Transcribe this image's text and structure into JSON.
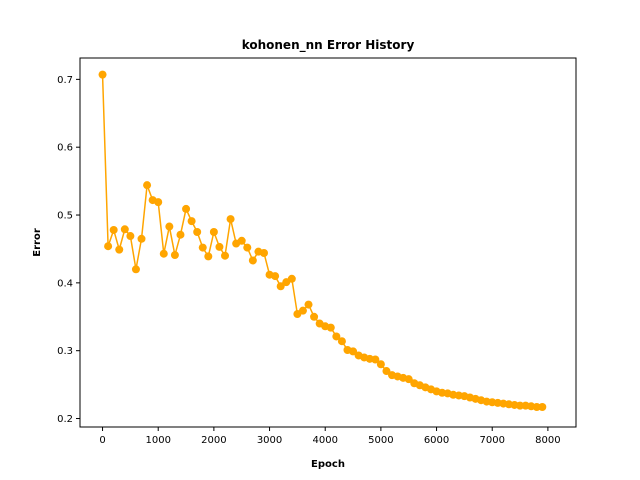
{
  "chart_data": {
    "type": "line",
    "title": "kohonen_nn Error History",
    "xlabel": "Epoch",
    "ylabel": "Error",
    "xlim": [
      -405,
      8505
    ],
    "ylim": [
      0.1875,
      0.7315
    ],
    "xticks": [
      0,
      1000,
      2000,
      3000,
      4000,
      5000,
      6000,
      7000,
      8000
    ],
    "yticks": [
      0.2,
      0.3,
      0.4,
      0.5,
      0.6,
      0.7
    ],
    "xtick_labels": [
      "0",
      "1000",
      "2000",
      "3000",
      "4000",
      "5000",
      "6000",
      "7000",
      "8000"
    ],
    "ytick_labels": [
      "0.2",
      "0.3",
      "0.4",
      "0.5",
      "0.6",
      "0.7"
    ],
    "grid": false,
    "series_color": "#FFA500",
    "marker": "circle",
    "series": [
      {
        "x": [
          0,
          100,
          200,
          300,
          400,
          500,
          600,
          700,
          800,
          900,
          1000,
          1100,
          1200,
          1300,
          1400,
          1500,
          1600,
          1700,
          1800,
          1900,
          2000,
          2100,
          2200,
          2300,
          2400,
          2500,
          2600,
          2700,
          2800,
          2900,
          3000,
          3100,
          3200,
          3300,
          3400,
          3500,
          3600,
          3700,
          3800,
          3900,
          4000,
          4100,
          4200,
          4300,
          4400,
          4500,
          4600,
          4700,
          4800,
          4900,
          5000,
          5100,
          5200,
          5300,
          5400,
          5500,
          5600,
          5700,
          5800,
          5900,
          6000,
          6100,
          6200,
          6300,
          6400,
          6500,
          6600,
          6700,
          6800,
          6900,
          7000,
          7100,
          7200,
          7300,
          7400,
          7500,
          7600,
          7700,
          7800,
          7900
        ],
        "y": [
          0.707,
          0.454,
          0.478,
          0.449,
          0.479,
          0.469,
          0.42,
          0.465,
          0.544,
          0.522,
          0.519,
          0.443,
          0.483,
          0.441,
          0.471,
          0.509,
          0.491,
          0.475,
          0.452,
          0.439,
          0.475,
          0.453,
          0.44,
          0.494,
          0.458,
          0.462,
          0.452,
          0.433,
          0.446,
          0.444,
          0.412,
          0.41,
          0.395,
          0.401,
          0.406,
          0.354,
          0.359,
          0.368,
          0.35,
          0.34,
          0.336,
          0.334,
          0.321,
          0.314,
          0.301,
          0.299,
          0.293,
          0.29,
          0.288,
          0.287,
          0.28,
          0.27,
          0.264,
          0.262,
          0.26,
          0.258,
          0.252,
          0.249,
          0.246,
          0.243,
          0.24,
          0.238,
          0.237,
          0.235,
          0.234,
          0.233,
          0.231,
          0.229,
          0.227,
          0.225,
          0.224,
          0.223,
          0.222,
          0.221,
          0.22,
          0.219,
          0.219,
          0.218,
          0.217,
          0.217
        ]
      }
    ]
  }
}
